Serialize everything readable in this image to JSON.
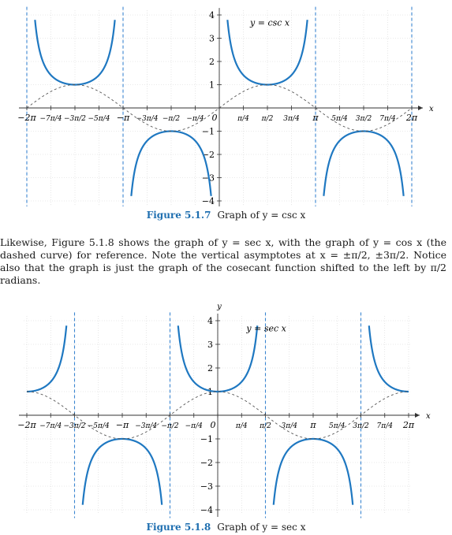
{
  "figures": [
    {
      "caption_label": "Figure 5.1.7",
      "caption_text": "Graph of y = csc x",
      "function_label": "y = csc x",
      "x_axis_var": "x",
      "y_axis_var": "",
      "x_tick_labels": [
        "−2π",
        "−7π/4",
        "−3π/2",
        "−5π/4",
        "−π",
        "−3π/4",
        "−π/2",
        "−π/4",
        "0",
        "π/4",
        "π/2",
        "3π/4",
        "π",
        "5π/4",
        "3π/2",
        "7π/4",
        "2π"
      ],
      "y_tick_labels": [
        "4",
        "3",
        "2",
        "1",
        "−1",
        "−2",
        "−3",
        "−4"
      ]
    },
    {
      "caption_label": "Figure 5.1.8",
      "caption_text": "Graph of y = sec x",
      "function_label": "y = sec x",
      "x_axis_var": "x",
      "y_axis_var": "y",
      "x_tick_labels": [
        "−2π",
        "−7π/4",
        "−3π/2",
        "−5π/4",
        "−π",
        "−3π/4",
        "−π/2",
        "−π/4",
        "0",
        "π/4",
        "π/2",
        "3π/4",
        "π",
        "5π/4",
        "3π/2",
        "7π/4",
        "2π"
      ],
      "y_tick_labels": [
        "4",
        "3",
        "2",
        "1",
        "−1",
        "−2",
        "−3",
        "−4"
      ]
    }
  ],
  "paragraph": {
    "p1": "Likewise, Figure 5.1.8 shows the graph of y = sec x, with the graph of y = cos x (the dashed curve) for reference. Note the vertical asymptotes at x = ±π/2, ±3π/2. Notice also that the graph is just the graph of the cosecant function shifted to the left by π/2 radians."
  },
  "chart_data": [
    {
      "type": "line",
      "title": "",
      "xlabel": "x",
      "ylabel": "",
      "xlim": [
        -6.2832,
        6.2832
      ],
      "ylim": [
        -4,
        4
      ],
      "grid": true,
      "series": [
        {
          "name": "y = csc x",
          "function": "csc",
          "style": "solid",
          "color": "#1f78c1"
        },
        {
          "function": "sin",
          "style": "dashed",
          "color": "#555555"
        }
      ],
      "asymptotes_x": [
        -6.2832,
        -3.1416,
        3.1416,
        6.2832
      ],
      "key_points": [
        {
          "x": -4.7124,
          "y": 1
        },
        {
          "x": -1.5708,
          "y": -1
        },
        {
          "x": 1.5708,
          "y": 1
        },
        {
          "x": 4.7124,
          "y": -1
        }
      ]
    },
    {
      "type": "line",
      "title": "",
      "xlabel": "x",
      "ylabel": "y",
      "xlim": [
        -6.2832,
        6.2832
      ],
      "ylim": [
        -4,
        4
      ],
      "grid": true,
      "series": [
        {
          "name": "y = sec x",
          "function": "sec",
          "style": "solid",
          "color": "#1f78c1"
        },
        {
          "function": "cos",
          "style": "dashed",
          "color": "#555555"
        }
      ],
      "asymptotes_x": [
        -4.7124,
        -1.5708,
        1.5708,
        4.7124
      ],
      "key_points": [
        {
          "x": -6.2832,
          "y": 1
        },
        {
          "x": -3.1416,
          "y": -1
        },
        {
          "x": 0,
          "y": 1
        },
        {
          "x": 3.1416,
          "y": -1
        },
        {
          "x": 6.2832,
          "y": 1
        }
      ]
    }
  ],
  "colors": {
    "curve": "#1f78c1",
    "asymptote": "#3b86d1",
    "dashed": "#555555",
    "grid": "#d4d4d4",
    "caption": "#1f6fb0"
  }
}
